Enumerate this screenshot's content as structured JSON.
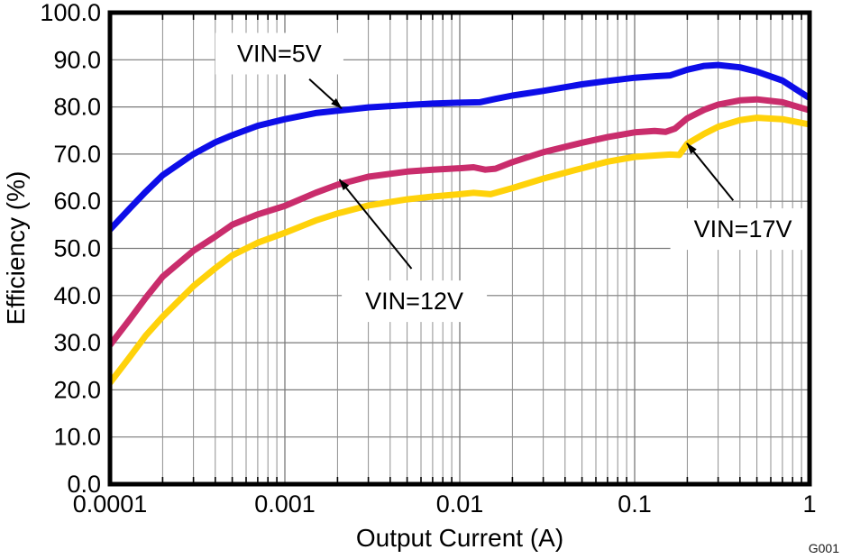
{
  "watermark": "G001",
  "chart_data": {
    "type": "line",
    "title": "",
    "xlabel": "Output Current (A)",
    "ylabel": "Efficiency (%)",
    "x_scale": "log",
    "xlim": [
      0.0001,
      1
    ],
    "ylim": [
      0,
      100
    ],
    "x_ticks": [
      0.0001,
      0.001,
      0.01,
      0.1,
      1
    ],
    "x_tick_labels": [
      "0.0001",
      "0.001",
      "0.01",
      "0.1",
      "1"
    ],
    "y_ticks": [
      0,
      10,
      20,
      30,
      40,
      50,
      60,
      70,
      80,
      90,
      100
    ],
    "y_tick_labels": [
      "0.0",
      "10.0",
      "20.0",
      "30.0",
      "40.0",
      "50.0",
      "60.0",
      "70.0",
      "80.0",
      "90.0",
      "100.0"
    ],
    "grid": {
      "horizontal_major": true,
      "vertical_major_decades": true,
      "vertical_minor_log": true,
      "major_color": "#7a7a7a",
      "minor_color": "#8f8f8f"
    },
    "legend": "none",
    "series": [
      {
        "name": "VIN=5V",
        "color": "#0d0de8",
        "points": [
          [
            0.0001,
            54
          ],
          [
            0.00013,
            58.5
          ],
          [
            0.00016,
            62
          ],
          [
            0.0002,
            65.5
          ],
          [
            0.0003,
            70
          ],
          [
            0.0004,
            72.5
          ],
          [
            0.0005,
            74
          ],
          [
            0.0007,
            76
          ],
          [
            0.001,
            77.4
          ],
          [
            0.0015,
            78.7
          ],
          [
            0.002,
            79.2
          ],
          [
            0.003,
            79.9
          ],
          [
            0.005,
            80.4
          ],
          [
            0.007,
            80.7
          ],
          [
            0.01,
            80.9
          ],
          [
            0.013,
            81.0
          ],
          [
            0.016,
            81.7
          ],
          [
            0.02,
            82.4
          ],
          [
            0.03,
            83.4
          ],
          [
            0.05,
            84.8
          ],
          [
            0.07,
            85.5
          ],
          [
            0.1,
            86.2
          ],
          [
            0.13,
            86.5
          ],
          [
            0.16,
            86.7
          ],
          [
            0.2,
            87.9
          ],
          [
            0.25,
            88.7
          ],
          [
            0.3,
            88.9
          ],
          [
            0.4,
            88.4
          ],
          [
            0.5,
            87.5
          ],
          [
            0.7,
            85.6
          ],
          [
            1,
            81.9
          ]
        ]
      },
      {
        "name": "VIN=12V",
        "color": "#c92d6c",
        "points": [
          [
            0.0001,
            29.5
          ],
          [
            0.00013,
            35
          ],
          [
            0.00016,
            39.5
          ],
          [
            0.0002,
            44
          ],
          [
            0.0003,
            49.5
          ],
          [
            0.0004,
            52.5
          ],
          [
            0.0005,
            55
          ],
          [
            0.0007,
            57.2
          ],
          [
            0.001,
            59
          ],
          [
            0.0015,
            61.8
          ],
          [
            0.002,
            63.5
          ],
          [
            0.003,
            65.2
          ],
          [
            0.005,
            66.3
          ],
          [
            0.007,
            66.7
          ],
          [
            0.01,
            67
          ],
          [
            0.012,
            67.2
          ],
          [
            0.014,
            66.7
          ],
          [
            0.016,
            66.9
          ],
          [
            0.02,
            68.3
          ],
          [
            0.03,
            70.4
          ],
          [
            0.05,
            72.4
          ],
          [
            0.07,
            73.6
          ],
          [
            0.1,
            74.6
          ],
          [
            0.13,
            74.9
          ],
          [
            0.15,
            74.7
          ],
          [
            0.17,
            75.4
          ],
          [
            0.2,
            77.6
          ],
          [
            0.25,
            79.4
          ],
          [
            0.3,
            80.5
          ],
          [
            0.4,
            81.4
          ],
          [
            0.5,
            81.6
          ],
          [
            0.7,
            81
          ],
          [
            1,
            79.3
          ]
        ]
      },
      {
        "name": "VIN=17V",
        "color": "#ffd20a",
        "points": [
          [
            0.0001,
            21.5
          ],
          [
            0.00013,
            27
          ],
          [
            0.00016,
            31.5
          ],
          [
            0.0002,
            35.5
          ],
          [
            0.0003,
            42
          ],
          [
            0.0004,
            45.8
          ],
          [
            0.0005,
            48.5
          ],
          [
            0.0007,
            51.2
          ],
          [
            0.001,
            53.3
          ],
          [
            0.0015,
            55.9
          ],
          [
            0.002,
            57.4
          ],
          [
            0.003,
            59.1
          ],
          [
            0.005,
            60.4
          ],
          [
            0.007,
            61
          ],
          [
            0.01,
            61.5
          ],
          [
            0.012,
            61.8
          ],
          [
            0.015,
            61.5
          ],
          [
            0.02,
            62.8
          ],
          [
            0.03,
            64.8
          ],
          [
            0.05,
            67
          ],
          [
            0.07,
            68.4
          ],
          [
            0.1,
            69.4
          ],
          [
            0.13,
            69.7
          ],
          [
            0.16,
            69.9
          ],
          [
            0.18,
            69.8
          ],
          [
            0.2,
            72.2
          ],
          [
            0.25,
            74.3
          ],
          [
            0.3,
            75.8
          ],
          [
            0.4,
            77.2
          ],
          [
            0.5,
            77.7
          ],
          [
            0.7,
            77.4
          ],
          [
            1,
            76.3
          ]
        ]
      }
    ],
    "annotations": [
      {
        "text": "VIN=5V",
        "label_x": 0.00093,
        "label_y": 91.3,
        "arrow_from_x": 0.00138,
        "arrow_from_y": 85.9,
        "arrow_to_x": 0.00211,
        "arrow_to_y": 79.7
      },
      {
        "text": "VIN=12V",
        "label_x": 0.0055,
        "label_y": 38.8,
        "arrow_from_x": 0.0053,
        "arrow_from_y": 45.7,
        "arrow_to_x": 0.00205,
        "arrow_to_y": 64.6
      },
      {
        "text": "VIN=17V",
        "label_x": 0.416,
        "label_y": 54.1,
        "arrow_from_x": 0.366,
        "arrow_from_y": 60.2,
        "arrow_to_x": 0.199,
        "arrow_to_y": 72.3
      }
    ]
  }
}
